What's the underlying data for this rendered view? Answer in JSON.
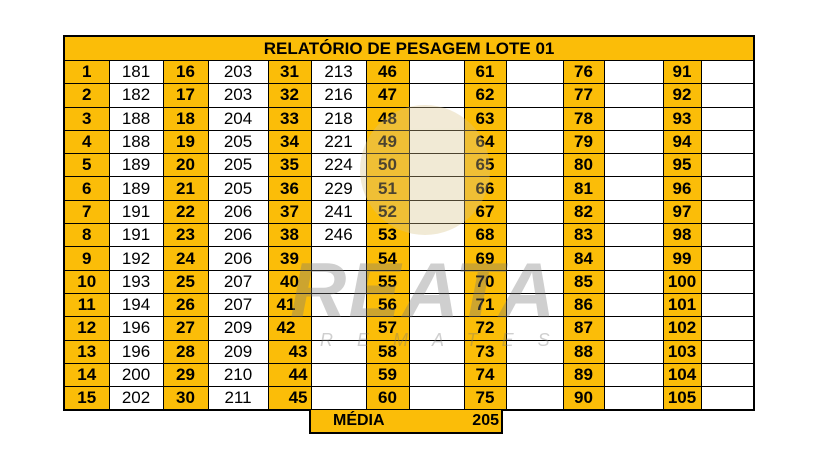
{
  "title": "RELATÓRIO DE PESAGEM LOTE  01",
  "columns": [
    [
      {
        "n": "1",
        "v": "181"
      },
      {
        "n": "2",
        "v": "182"
      },
      {
        "n": "3",
        "v": "188"
      },
      {
        "n": "4",
        "v": "188"
      },
      {
        "n": "5",
        "v": "189"
      },
      {
        "n": "6",
        "v": "189"
      },
      {
        "n": "7",
        "v": "191"
      },
      {
        "n": "8",
        "v": "191"
      },
      {
        "n": "9",
        "v": "192"
      },
      {
        "n": "10",
        "v": "193"
      },
      {
        "n": "11",
        "v": "194"
      },
      {
        "n": "12",
        "v": "196"
      },
      {
        "n": "13",
        "v": "196"
      },
      {
        "n": "14",
        "v": "200"
      },
      {
        "n": "15",
        "v": "202"
      }
    ],
    [
      {
        "n": "16",
        "v": "203"
      },
      {
        "n": "17",
        "v": "203"
      },
      {
        "n": "18",
        "v": "204"
      },
      {
        "n": "19",
        "v": "205"
      },
      {
        "n": "20",
        "v": "205"
      },
      {
        "n": "21",
        "v": "205"
      },
      {
        "n": "22",
        "v": "206"
      },
      {
        "n": "23",
        "v": "206"
      },
      {
        "n": "24",
        "v": "206"
      },
      {
        "n": "25",
        "v": "207"
      },
      {
        "n": "26",
        "v": "207"
      },
      {
        "n": "27",
        "v": "209"
      },
      {
        "n": "28",
        "v": "209"
      },
      {
        "n": "29",
        "v": "210"
      },
      {
        "n": "30",
        "v": "211"
      }
    ],
    [
      {
        "n": "31",
        "v": "213"
      },
      {
        "n": "32",
        "v": "216"
      },
      {
        "n": "33",
        "v": "218"
      },
      {
        "n": "34",
        "v": "221"
      },
      {
        "n": "35",
        "v": "224"
      },
      {
        "n": "36",
        "v": "229"
      },
      {
        "n": "37",
        "v": "241"
      },
      {
        "n": "38",
        "v": "246"
      },
      {
        "n": "39",
        "v": ""
      },
      {
        "n": "40",
        "v": ""
      },
      {
        "n": "41",
        "v": ""
      },
      {
        "n": "42",
        "v": ""
      },
      {
        "n": "43",
        "v": ""
      },
      {
        "n": "44",
        "v": ""
      },
      {
        "n": "45",
        "v": ""
      }
    ],
    [
      {
        "n": "46",
        "v": ""
      },
      {
        "n": "47",
        "v": ""
      },
      {
        "n": "48",
        "v": ""
      },
      {
        "n": "49",
        "v": ""
      },
      {
        "n": "50",
        "v": ""
      },
      {
        "n": "51",
        "v": ""
      },
      {
        "n": "52",
        "v": ""
      },
      {
        "n": "53",
        "v": ""
      },
      {
        "n": "54",
        "v": ""
      },
      {
        "n": "55",
        "v": ""
      },
      {
        "n": "56",
        "v": ""
      },
      {
        "n": "57",
        "v": ""
      },
      {
        "n": "58",
        "v": ""
      },
      {
        "n": "59",
        "v": ""
      },
      {
        "n": "60",
        "v": ""
      }
    ],
    [
      {
        "n": "61",
        "v": ""
      },
      {
        "n": "62",
        "v": ""
      },
      {
        "n": "63",
        "v": ""
      },
      {
        "n": "64",
        "v": ""
      },
      {
        "n": "65",
        "v": ""
      },
      {
        "n": "66",
        "v": ""
      },
      {
        "n": "67",
        "v": ""
      },
      {
        "n": "68",
        "v": ""
      },
      {
        "n": "69",
        "v": ""
      },
      {
        "n": "70",
        "v": ""
      },
      {
        "n": "71",
        "v": ""
      },
      {
        "n": "72",
        "v": ""
      },
      {
        "n": "73",
        "v": ""
      },
      {
        "n": "74",
        "v": ""
      },
      {
        "n": "75",
        "v": ""
      }
    ],
    [
      {
        "n": "76",
        "v": ""
      },
      {
        "n": "77",
        "v": ""
      },
      {
        "n": "78",
        "v": ""
      },
      {
        "n": "79",
        "v": ""
      },
      {
        "n": "80",
        "v": ""
      },
      {
        "n": "81",
        "v": ""
      },
      {
        "n": "82",
        "v": ""
      },
      {
        "n": "83",
        "v": ""
      },
      {
        "n": "84",
        "v": ""
      },
      {
        "n": "85",
        "v": ""
      },
      {
        "n": "86",
        "v": ""
      },
      {
        "n": "87",
        "v": ""
      },
      {
        "n": "88",
        "v": ""
      },
      {
        "n": "89",
        "v": ""
      },
      {
        "n": "90",
        "v": ""
      }
    ],
    [
      {
        "n": "91",
        "v": ""
      },
      {
        "n": "92",
        "v": ""
      },
      {
        "n": "93",
        "v": ""
      },
      {
        "n": "94",
        "v": ""
      },
      {
        "n": "95",
        "v": ""
      },
      {
        "n": "96",
        "v": ""
      },
      {
        "n": "97",
        "v": ""
      },
      {
        "n": "98",
        "v": ""
      },
      {
        "n": "99",
        "v": ""
      },
      {
        "n": "100",
        "v": ""
      },
      {
        "n": "101",
        "v": ""
      },
      {
        "n": "102",
        "v": ""
      },
      {
        "n": "103",
        "v": ""
      },
      {
        "n": "104",
        "v": ""
      },
      {
        "n": "105",
        "v": ""
      }
    ]
  ],
  "media": {
    "label": "MÉDIA",
    "value": "205"
  },
  "watermark": {
    "text": "REATA",
    "subtitle": "REMATES"
  },
  "colors": {
    "header": "#fbbd08",
    "border": "#000000"
  }
}
